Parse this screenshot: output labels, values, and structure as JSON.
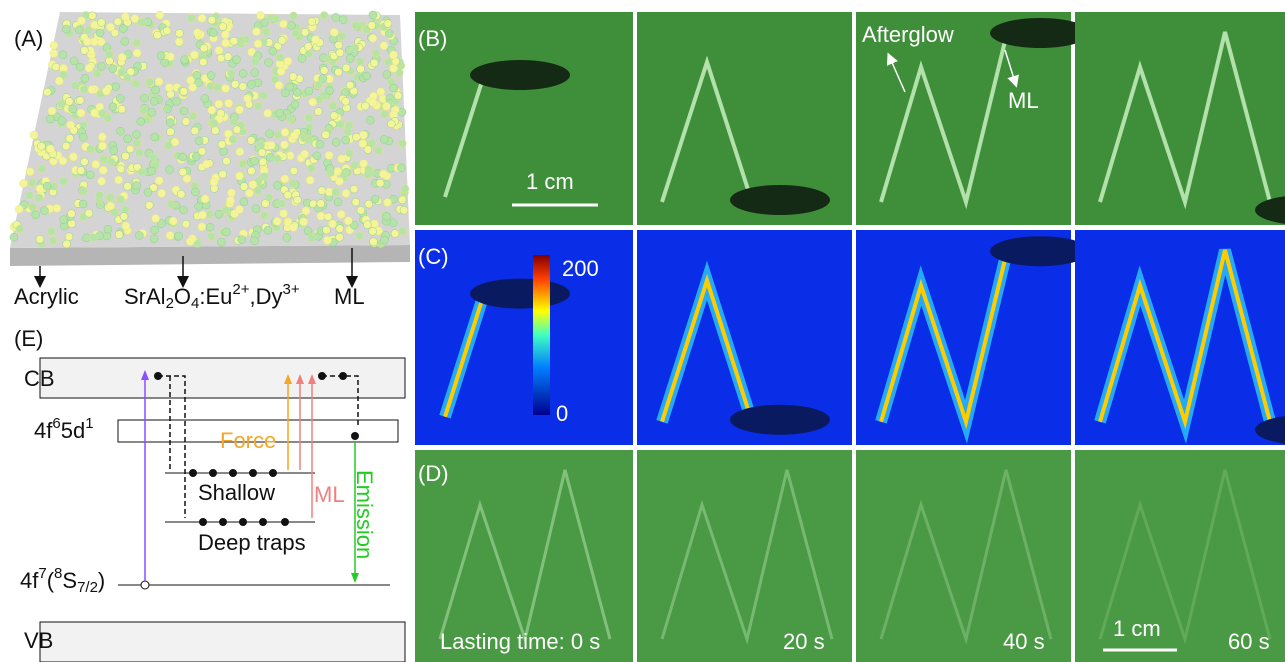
{
  "panels": {
    "a": "(A)",
    "b": "(B)",
    "c": "(C)",
    "d": "(D)",
    "e": "(E)"
  },
  "panel_a": {
    "labels": [
      "Acrylic",
      "ML"
    ],
    "phosphor": [
      "SrAl",
      "2",
      "O",
      "4",
      ":Eu",
      "2+",
      ",Dy",
      "3+"
    ]
  },
  "panel_b": {
    "scale": "1 cm",
    "afterglow": "Afterglow",
    "ml": "ML"
  },
  "panel_c": {
    "colorbar_max": "200",
    "colorbar_min": "0"
  },
  "panel_d": {
    "times": [
      "Lasting time: 0 s",
      "20 s",
      "40 s",
      "60 s"
    ],
    "scale": "1 cm"
  },
  "panel_e": {
    "cb": "CB",
    "excited": [
      "4f",
      "6",
      "5d",
      "1"
    ],
    "force": "Force",
    "ml": "ML",
    "emission": "Emission",
    "shallow": "Shallow",
    "deep": "Deep traps",
    "ground": [
      "4f",
      "7",
      "(",
      "8",
      "S",
      "7/2",
      ")"
    ],
    "vb": "VB"
  }
}
